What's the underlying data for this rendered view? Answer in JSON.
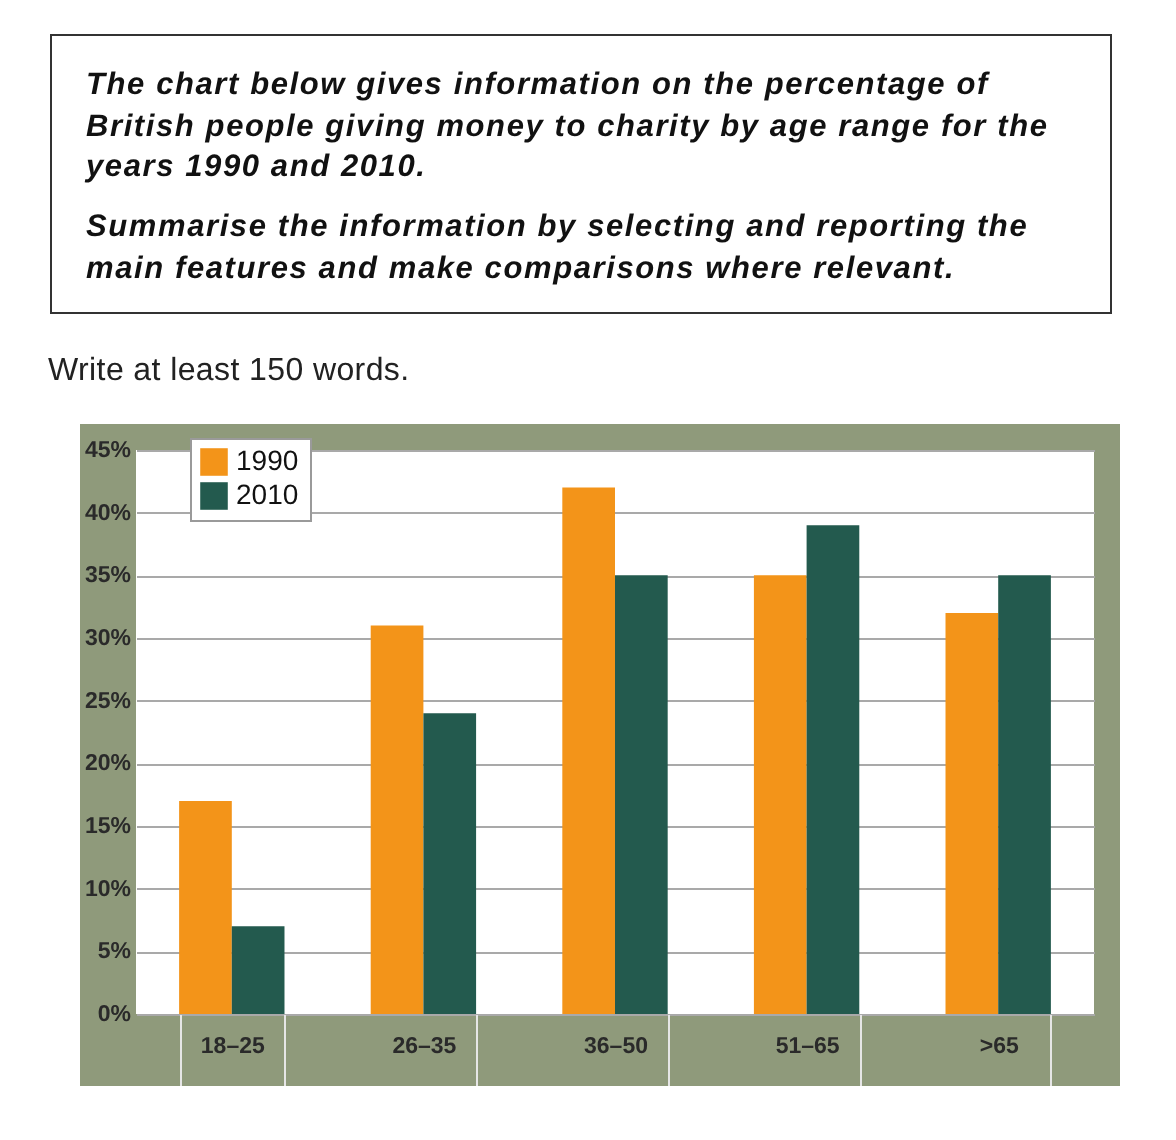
{
  "chart_data": {
    "type": "bar",
    "title": "The chart below gives information on the percentage of British people giving money to charity by age range for the years 1990 and 2010.",
    "subtitle": "Summarise the information by selecting and reporting the main features and make comparisons where relevant.",
    "annotations": [
      "Write at least 150 words."
    ],
    "categories": [
      "18–25",
      "26–35",
      "36–50",
      "51–65",
      ">65"
    ],
    "series": [
      {
        "name": "1990",
        "color": "#f39419",
        "values": [
          17,
          31,
          42,
          35,
          32
        ]
      },
      {
        "name": "2010",
        "color": "#235a4e",
        "values": [
          7,
          24,
          35,
          39,
          35
        ]
      }
    ],
    "ylim": [
      0,
      45
    ],
    "yticks": [
      {
        "value": 0,
        "label": "0%"
      },
      {
        "value": 5,
        "label": "5%"
      },
      {
        "value": 10,
        "label": "10%"
      },
      {
        "value": 15,
        "label": "15%"
      },
      {
        "value": 20,
        "label": "20%"
      },
      {
        "value": 25,
        "label": "25%"
      },
      {
        "value": 30,
        "label": "30%"
      },
      {
        "value": 35,
        "label": "35%"
      },
      {
        "value": 40,
        "label": "40%"
      },
      {
        "value": 45,
        "label": "45%"
      }
    ],
    "grid": "y",
    "legend": "top left"
  }
}
